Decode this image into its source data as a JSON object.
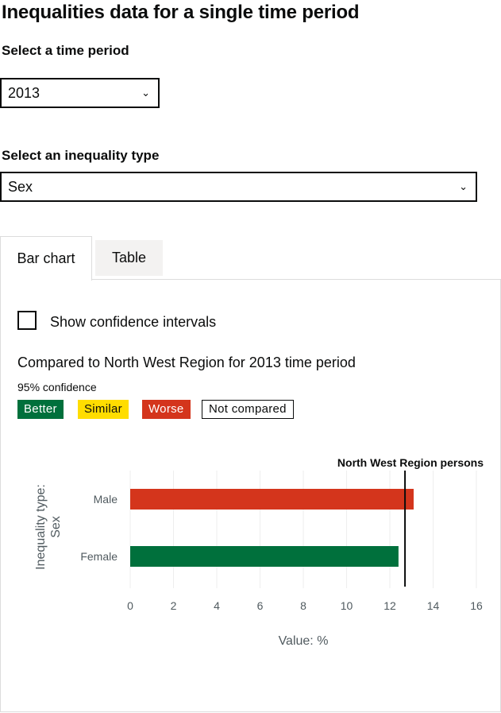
{
  "page": {
    "heading": "Inequalities data for a single time period"
  },
  "time_period": {
    "label": "Select a time period",
    "value": "2013"
  },
  "inequality_type": {
    "label": "Select an inequality type",
    "value": "Sex"
  },
  "tabs": [
    {
      "label": "Bar chart",
      "active": true
    },
    {
      "label": "Table",
      "active": false
    }
  ],
  "confidence_checkbox": {
    "label": "Show confidence intervals",
    "checked": false
  },
  "comparison": {
    "text": "Compared to North West Region for 2013 time period",
    "confidence": "95% confidence"
  },
  "key": {
    "better": "Better",
    "similar": "Similar",
    "worse": "Worse",
    "not_compared": "Not compared",
    "colors": {
      "better": "#00703c",
      "similar": "#ffdd00",
      "worse": "#d4351c"
    }
  },
  "icons": {
    "select_chevron": "chevron-down-icon"
  },
  "chart_data": {
    "type": "bar",
    "orientation": "horizontal",
    "categories": [
      "Male",
      "Female"
    ],
    "values": [
      13.1,
      12.4
    ],
    "bar_colors": [
      "#d4351c",
      "#00703c"
    ],
    "ylabel_lines": [
      "Inequality type:",
      "Sex"
    ],
    "xlabel": "Value: %",
    "xlim": [
      0,
      16
    ],
    "xticks": [
      0,
      2,
      4,
      6,
      8,
      10,
      12,
      14,
      16
    ],
    "grid": true,
    "reference_line": {
      "label": "North West Region persons",
      "value": 12.7
    }
  }
}
